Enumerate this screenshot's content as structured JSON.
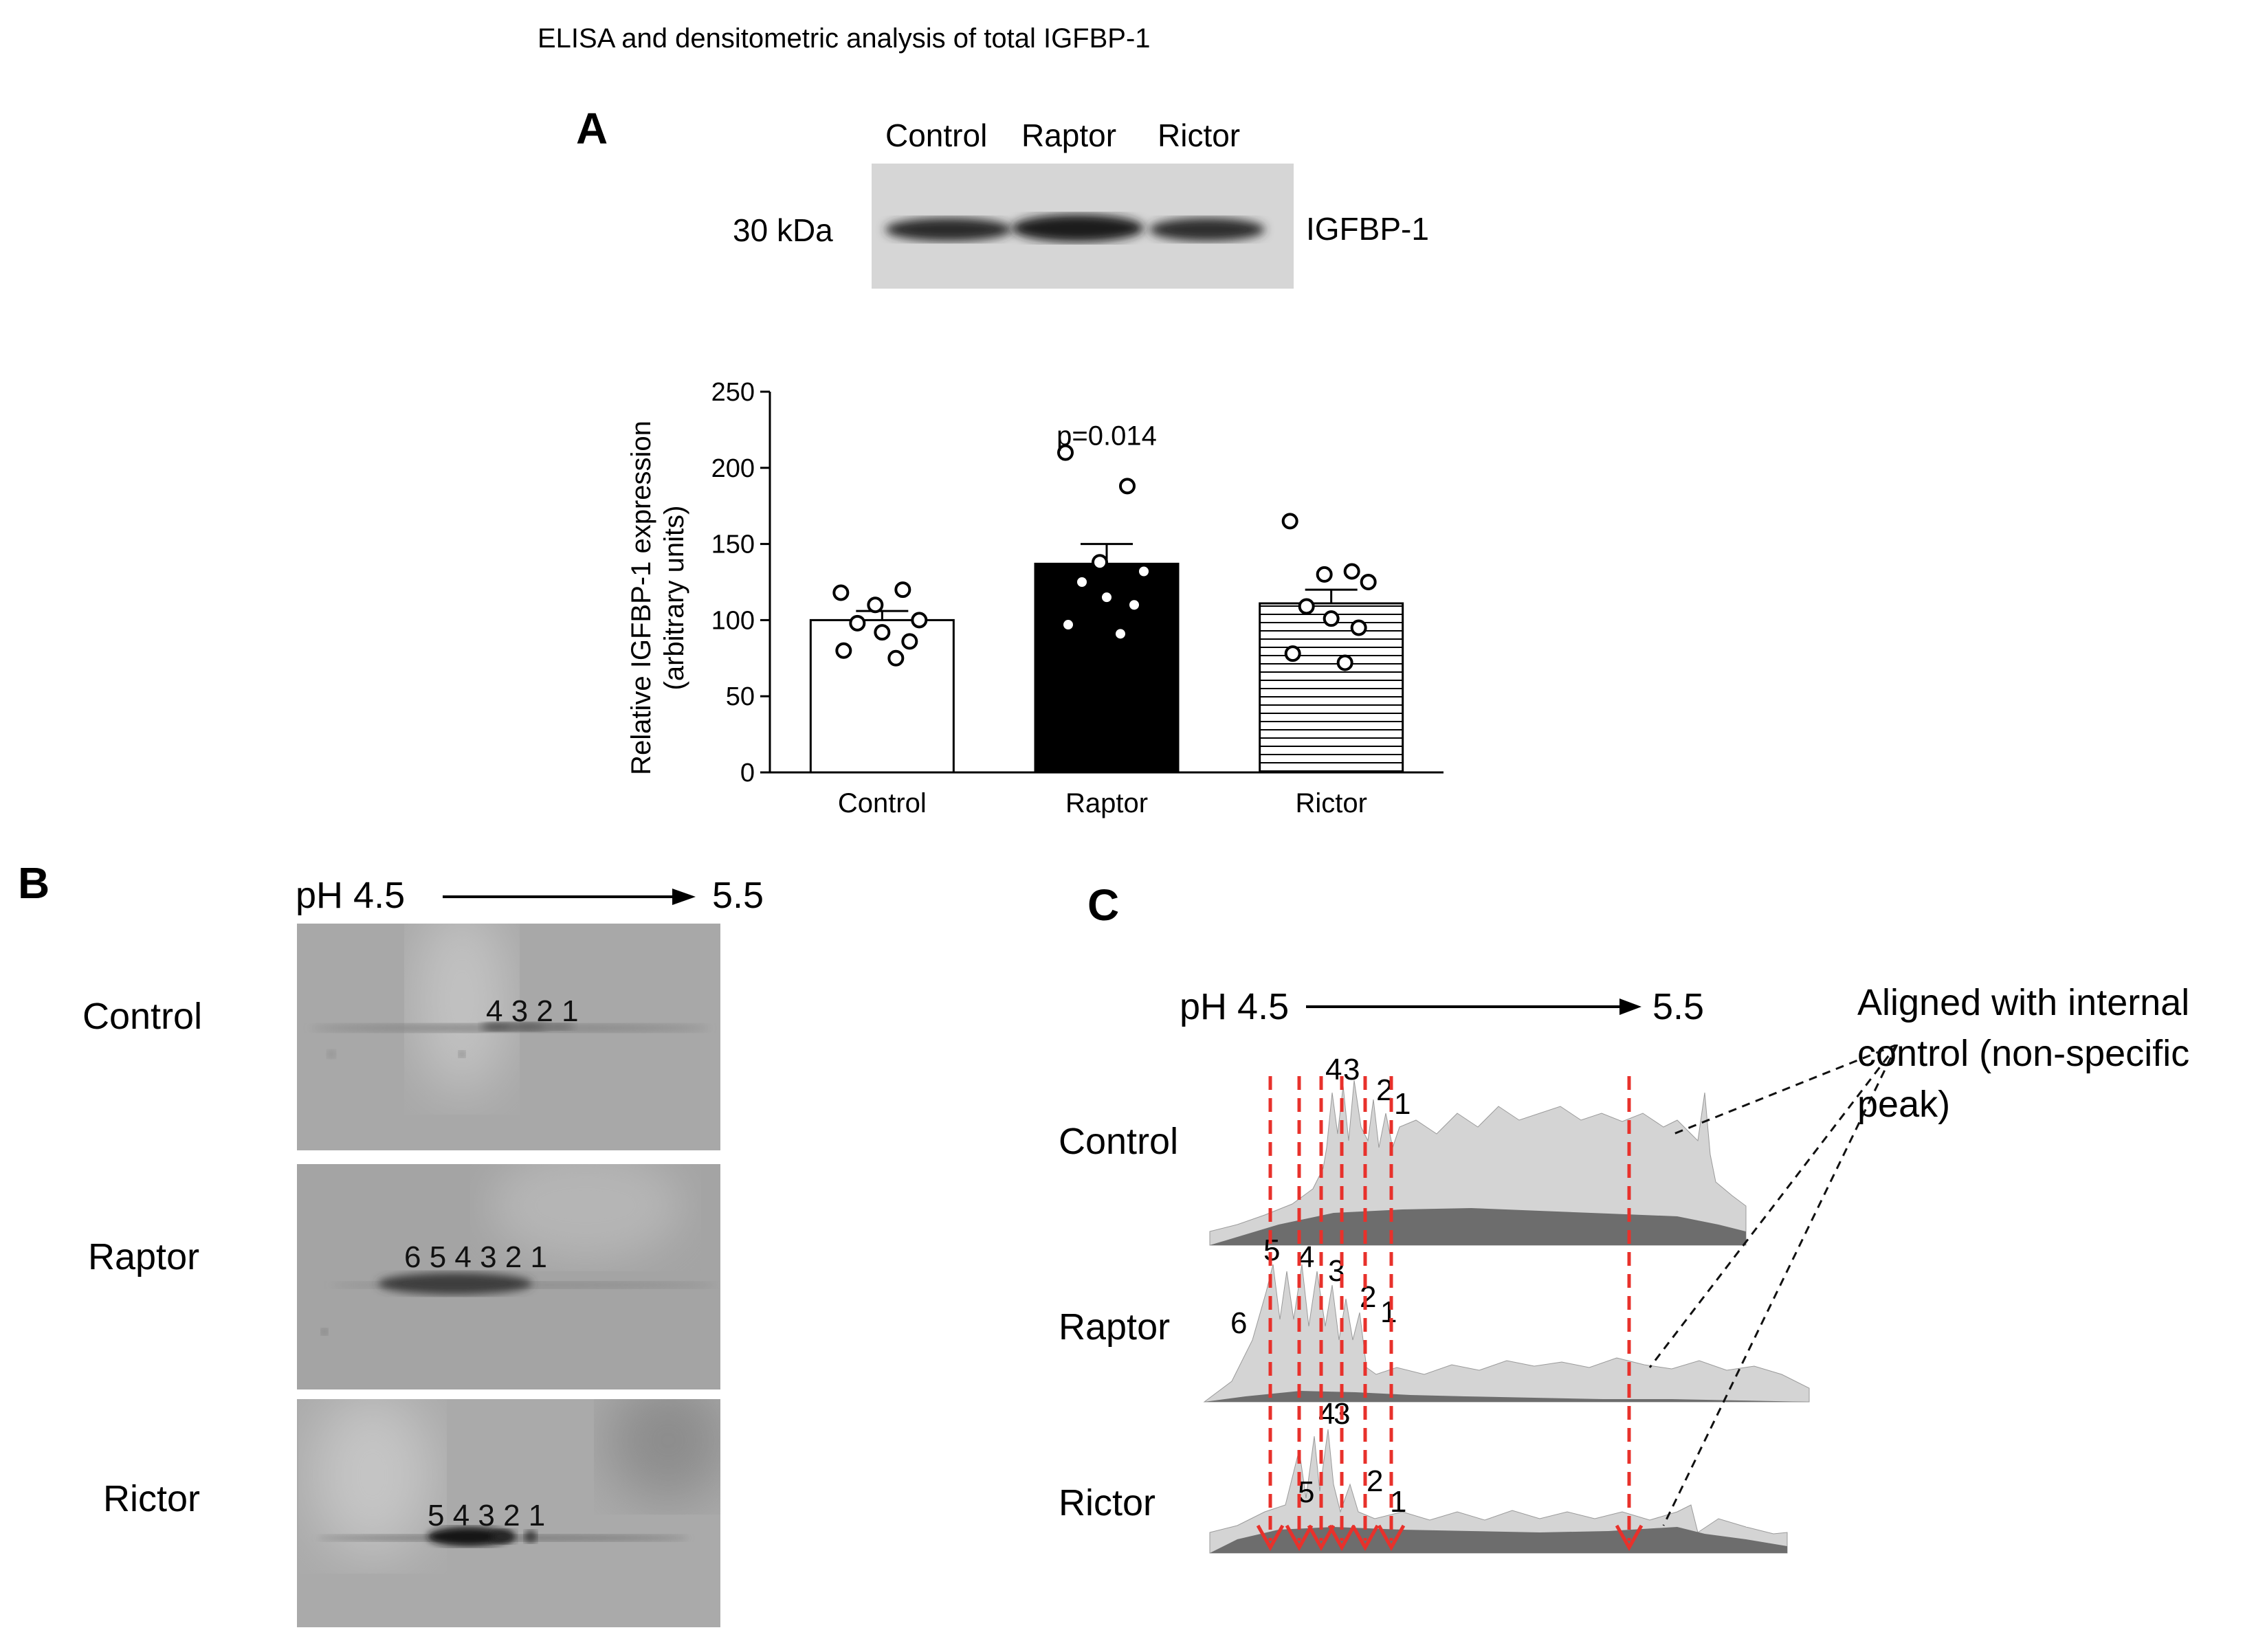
{
  "title": "ELISA and densitometric analysis of total IGFBP-1",
  "panel_a": {
    "letter": "A",
    "lanes": [
      "Control",
      "Raptor",
      "Rictor"
    ],
    "marker": "30 kDa",
    "protein": "IGFBP-1"
  },
  "chart_data": {
    "type": "bar",
    "categories": [
      "Control",
      "Raptor",
      "Rictor"
    ],
    "values": [
      100,
      137,
      111
    ],
    "errors": [
      6,
      13,
      9
    ],
    "points": [
      [
        118,
        120,
        110,
        100,
        98,
        92,
        86,
        80,
        75
      ],
      [
        210,
        188,
        138,
        132,
        125,
        115,
        110,
        97,
        91
      ],
      [
        165,
        132,
        130,
        125,
        109,
        101,
        95,
        78,
        72
      ]
    ],
    "fills": [
      "white",
      "black",
      "horizontal-stripes"
    ],
    "ylabel": "Relative IGFBP-1 expression (arbitrary units)",
    "ylabel_lines": [
      "Relative IGFBP-1 expression",
      "(arbitrary units)"
    ],
    "ylim": [
      0,
      250
    ],
    "yticks": [
      "250",
      "200",
      "150",
      "100",
      "50",
      "0"
    ],
    "annotation": "p=0.014",
    "annotation_category": "Raptor"
  },
  "panel_b": {
    "letter": "B",
    "ph_start": "pH 4.5",
    "ph_end": "5.5",
    "rows": [
      {
        "label": "Control",
        "spots": "4 3 2 1"
      },
      {
        "label": "Raptor",
        "spots": "6 5 4 3 2 1"
      },
      {
        "label": "Rictor",
        "spots": "5 4 3 2 1"
      }
    ]
  },
  "panel_c": {
    "letter": "C",
    "ph_start": "pH 4.5",
    "ph_end": "5.5",
    "annotation": "Aligned with internal control (non-specific peak)",
    "annotation_lines": [
      "Aligned with internal",
      "control (non-specific",
      "peak)"
    ],
    "rows": [
      {
        "label": "Control",
        "peaks": [
          "4",
          "3",
          "2",
          "1"
        ]
      },
      {
        "label": "Raptor",
        "peaks": [
          "6",
          "5",
          "4",
          "3",
          "2",
          "1"
        ]
      },
      {
        "label": "Rictor",
        "peaks": [
          "5",
          "4",
          "3",
          "2",
          "1"
        ]
      }
    ],
    "colors": {
      "arrow": "#e8312b",
      "peak_fill": "#d2d2d2",
      "peak_base": "#6d6d6d"
    }
  }
}
